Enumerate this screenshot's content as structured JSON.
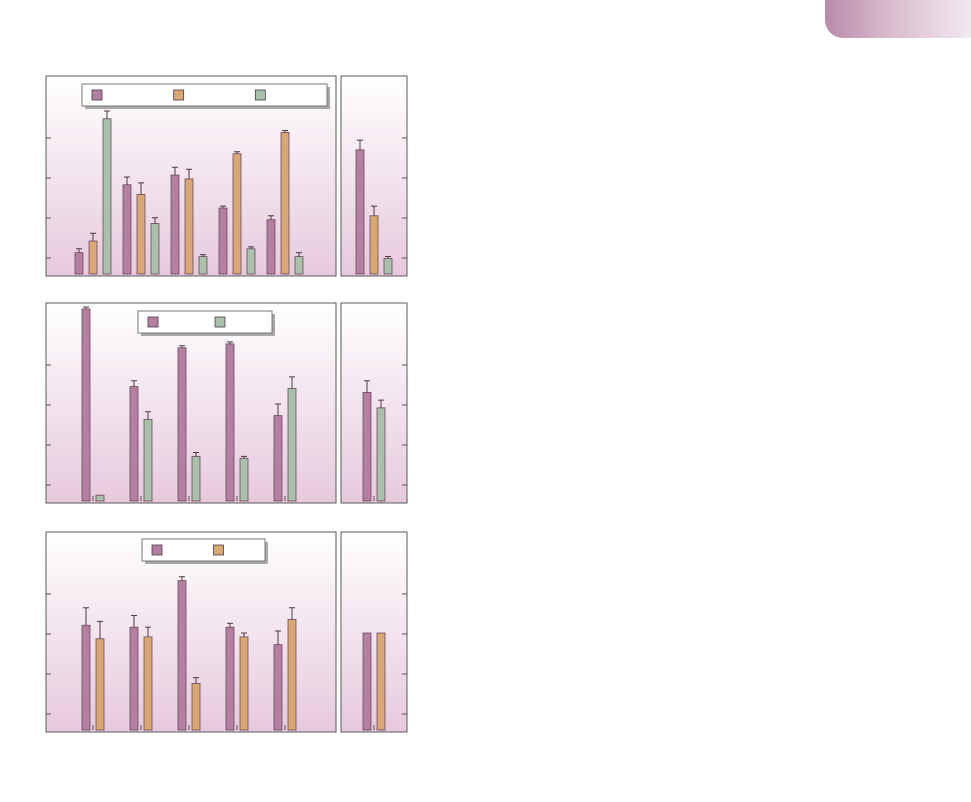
{
  "colors": {
    "purple": "#b47fa1",
    "tan": "#d9a773",
    "sage": "#a9c0ab",
    "frame": "#5a5a5a",
    "panel_top": "#ffffff",
    "panel_bottom": "#e6c9dc",
    "accent_tab": "#c79bb8"
  },
  "decor": {
    "corner_tab": "accent-tab"
  },
  "chart_data": [
    {
      "type": "bar",
      "legend": "top",
      "yticks": 5,
      "ylim": [
        0,
        100
      ],
      "groups": 5,
      "series": [
        {
          "color": "purple",
          "values": [
            11,
            46,
            51,
            34,
            28
          ],
          "err": [
            2,
            4,
            4,
            1,
            2
          ]
        },
        {
          "color": "tan",
          "values": [
            17,
            41,
            49,
            62,
            73
          ],
          "err": [
            4,
            6,
            5,
            1,
            1
          ]
        },
        {
          "color": "sage",
          "values": [
            80,
            26,
            9,
            13,
            9
          ],
          "err": [
            4,
            3,
            1,
            1,
            2
          ]
        }
      ],
      "side": {
        "ylim": [
          0,
          100
        ],
        "series": [
          {
            "color": "purple",
            "values": [
              64
            ],
            "err": [
              5
            ]
          },
          {
            "color": "tan",
            "values": [
              30
            ],
            "err": [
              5
            ]
          },
          {
            "color": "sage",
            "values": [
              8
            ],
            "err": [
              1
            ]
          }
        ]
      }
    },
    {
      "type": "bar",
      "legend": "top",
      "yticks": 5,
      "ylim": [
        0,
        100
      ],
      "groups": 5,
      "series": [
        {
          "color": "purple",
          "values": [
            99,
            59,
            79,
            81,
            44
          ],
          "err": [
            1,
            3,
            1,
            1,
            6
          ]
        },
        {
          "color": "sage",
          "values": [
            3,
            42,
            23,
            22,
            58
          ],
          "err": [
            0,
            4,
            2,
            1,
            6
          ]
        }
      ],
      "side": {
        "ylim": [
          0,
          100
        ],
        "series": [
          {
            "color": "purple",
            "values": [
              56
            ],
            "err": [
              6
            ]
          },
          {
            "color": "sage",
            "values": [
              48
            ],
            "err": [
              4
            ]
          }
        ]
      }
    },
    {
      "type": "bar",
      "legend": "top",
      "yticks": 5,
      "ylim": [
        0,
        100
      ],
      "groups": 5,
      "series": [
        {
          "color": "purple",
          "values": [
            54,
            53,
            77,
            53,
            44
          ],
          "err": [
            9,
            6,
            2,
            2,
            7
          ]
        },
        {
          "color": "tan",
          "values": [
            47,
            48,
            24,
            48,
            57
          ],
          "err": [
            9,
            5,
            3,
            2,
            6
          ]
        }
      ],
      "side": {
        "ylim": [
          0,
          100
        ],
        "series": [
          {
            "color": "purple",
            "values": [
              50
            ],
            "err": [
              0
            ]
          },
          {
            "color": "tan",
            "values": [
              50
            ],
            "err": [
              0
            ]
          }
        ]
      }
    }
  ]
}
